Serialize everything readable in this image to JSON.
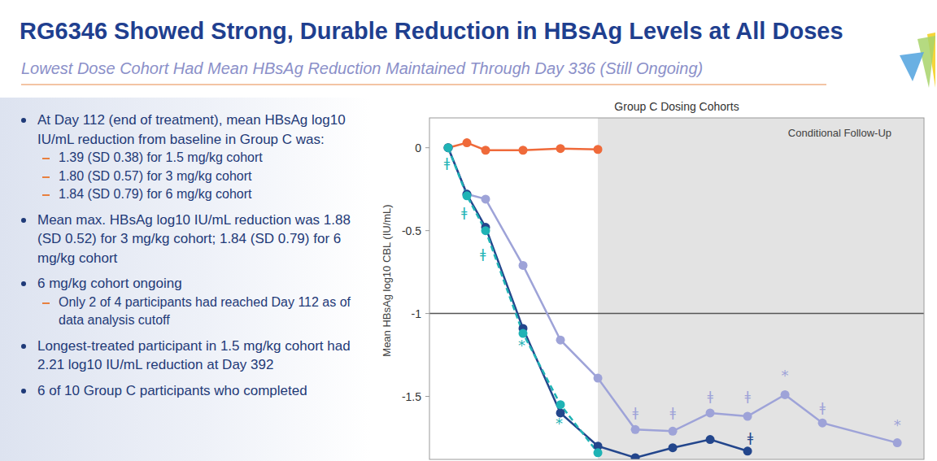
{
  "header": {
    "title": "RG6346 Showed Strong, Durable Reduction in HBsAg Levels at All Doses",
    "subtitle": "Lowest Dose Cohort Had Mean HBsAg Reduction Maintained Through Day 336 (Still Ongoing)"
  },
  "bullets": [
    {
      "text": "At Day 112 (end of treatment), mean HBsAg log10 IU/mL reduction from baseline in Group C was:",
      "sub": [
        "1.39 (SD 0.38) for 1.5 mg/kg cohort",
        "1.80 (SD 0.57) for 3 mg/kg cohort",
        "1.84 (SD 0.79) for 6 mg/kg cohort"
      ]
    },
    {
      "text": "Mean max. HBsAg log10 IU/mL reduction was 1.88 (SD 0.52) for 3 mg/kg cohort; 1.84 (SD 0.79) for 6 mg/kg cohort",
      "sub": []
    },
    {
      "text": "6 mg/kg cohort ongoing",
      "sub": [
        "Only 2 of 4 participants had reached Day 112 as of data analysis cutoff"
      ]
    },
    {
      "text": "Longest-treated participant in 1.5 mg/kg cohort had 2.21 log10 IU/mL reduction at Day 392",
      "sub": []
    },
    {
      "text": "6 of 10 Group C participants who completed",
      "sub": []
    }
  ],
  "chart_data": {
    "type": "line",
    "title": "Group C Dosing Cohorts",
    "y_label": "Mean HBsAg log10 CBL (IU/mL)",
    "xlim": [
      -14,
      356
    ],
    "ylim": [
      -1.88,
      0.18
    ],
    "yticks": [
      0,
      -0.5,
      -1,
      -1.5
    ],
    "grid": false,
    "tick_labels": "y",
    "shaded_region": {
      "from": 112,
      "label": "Conditional Follow-Up"
    },
    "reference_line": -1,
    "series": [
      {
        "color": "#ef6a3a",
        "marker": "circle",
        "line_style": "solid",
        "x": [
          0,
          14,
          28,
          56,
          84,
          112
        ],
        "values": [
          0,
          0.03,
          -0.015,
          -0.015,
          -0.005,
          -0.01
        ]
      },
      {
        "color": "#9ea3d8",
        "marker": "circle",
        "line_style": "solid",
        "x": [
          0,
          14,
          28,
          56,
          84,
          112,
          140,
          168,
          196,
          224,
          252,
          280,
          336
        ],
        "values": [
          0,
          -0.28,
          -0.31,
          -0.71,
          -1.16,
          -1.39,
          -1.7,
          -1.71,
          -1.6,
          -1.62,
          -1.49,
          -1.66,
          -1.78
        ]
      },
      {
        "color": "#23468c",
        "marker": "circle",
        "line_style": "solid",
        "x": [
          0,
          14,
          28,
          56,
          84,
          112,
          140,
          168,
          196,
          224
        ],
        "values": [
          0,
          -0.28,
          -0.48,
          -1.09,
          -1.6,
          -1.8,
          -1.87,
          -1.81,
          -1.76,
          -1.83
        ]
      },
      {
        "color": "#1fb3b5",
        "marker": "circle",
        "line_style": "dashed",
        "x": [
          0,
          14,
          28,
          56,
          84,
          112
        ],
        "values": [
          0,
          -0.29,
          -0.5,
          -1.12,
          -1.55,
          -1.84
        ]
      }
    ],
    "annotations": [
      {
        "text": "ǂ",
        "x": -1,
        "y": -0.09,
        "series": 3
      },
      {
        "text": "ǂ",
        "x": 12,
        "y": -0.39,
        "series": 3
      },
      {
        "text": "ǂ",
        "x": 26,
        "y": -0.64,
        "series": 3
      },
      {
        "text": "*",
        "x": 55,
        "y": -1.19,
        "series": 3
      },
      {
        "text": "*",
        "x": 83,
        "y": -1.66,
        "series": 3
      },
      {
        "text": "ǂ",
        "x": 140,
        "y": -1.6,
        "series": 1
      },
      {
        "text": "ǂ",
        "x": 168,
        "y": -1.6,
        "series": 1
      },
      {
        "text": "ǂ",
        "x": 196,
        "y": -1.5,
        "series": 1
      },
      {
        "text": "ǂ",
        "x": 224,
        "y": -1.5,
        "series": 1
      },
      {
        "text": "*",
        "x": 252,
        "y": -1.37,
        "series": 1
      },
      {
        "text": "ǂ",
        "x": 280,
        "y": -1.57,
        "series": 1
      },
      {
        "text": "*",
        "x": 336,
        "y": -1.67,
        "series": 1
      },
      {
        "text": "ǂ",
        "x": 226,
        "y": -1.75,
        "series": 2
      }
    ]
  }
}
